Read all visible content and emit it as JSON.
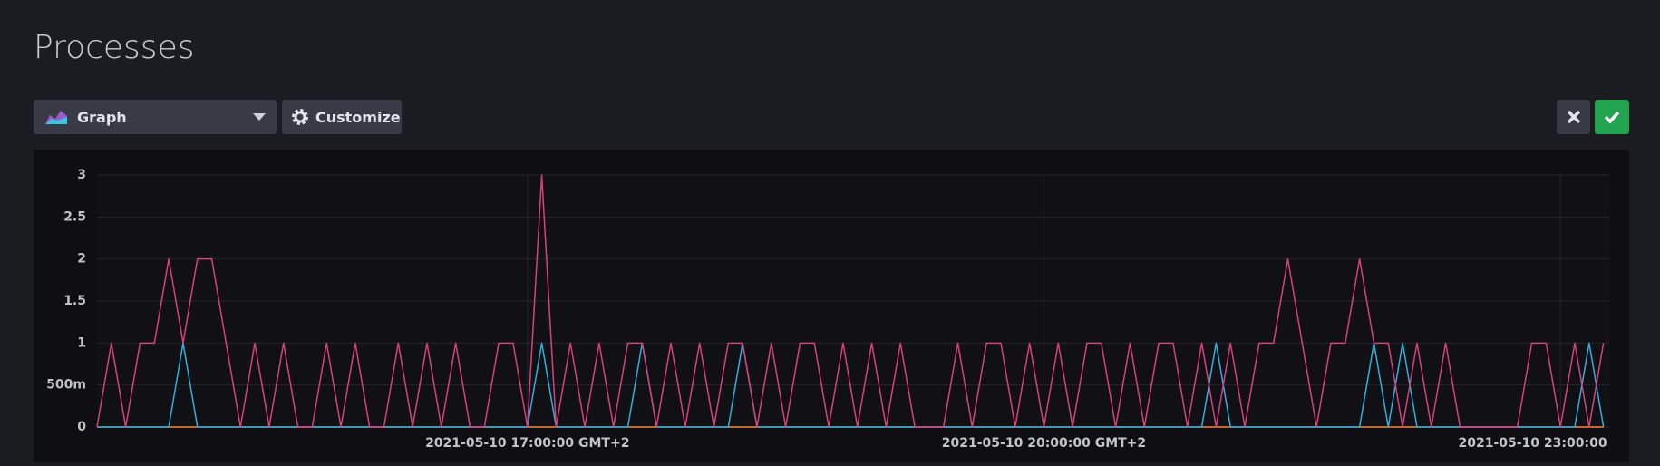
{
  "page": {
    "title": "Processes",
    "view_type": "Graph",
    "customize": "Customize"
  },
  "chart_data": {
    "type": "line",
    "x": [
      "2021-05-10T14:30:00",
      "2021-05-10T14:35:00",
      "2021-05-10T14:40:00",
      "2021-05-10T14:45:00",
      "2021-05-10T14:50:00",
      "2021-05-10T14:55:00",
      "2021-05-10T15:00:00",
      "2021-05-10T15:05:00",
      "2021-05-10T15:10:00",
      "2021-05-10T15:15:00",
      "2021-05-10T15:20:00",
      "2021-05-10T15:25:00",
      "2021-05-10T15:30:00",
      "2021-05-10T15:35:00",
      "2021-05-10T15:40:00",
      "2021-05-10T15:45:00",
      "2021-05-10T15:50:00",
      "2021-05-10T15:55:00",
      "2021-05-10T16:00:00",
      "2021-05-10T16:05:00",
      "2021-05-10T16:10:00",
      "2021-05-10T16:15:00",
      "2021-05-10T16:20:00",
      "2021-05-10T16:25:00",
      "2021-05-10T16:30:00",
      "2021-05-10T16:35:00",
      "2021-05-10T16:40:00",
      "2021-05-10T16:45:00",
      "2021-05-10T16:50:00",
      "2021-05-10T16:55:00",
      "2021-05-10T17:00:00",
      "2021-05-10T17:05:00",
      "2021-05-10T17:10:00",
      "2021-05-10T17:15:00",
      "2021-05-10T17:20:00",
      "2021-05-10T17:25:00",
      "2021-05-10T17:30:00",
      "2021-05-10T17:35:00",
      "2021-05-10T17:40:00",
      "2021-05-10T17:45:00",
      "2021-05-10T17:50:00",
      "2021-05-10T17:55:00",
      "2021-05-10T18:00:00",
      "2021-05-10T18:05:00",
      "2021-05-10T18:10:00",
      "2021-05-10T18:15:00",
      "2021-05-10T18:20:00",
      "2021-05-10T18:25:00",
      "2021-05-10T18:30:00",
      "2021-05-10T18:35:00",
      "2021-05-10T18:40:00",
      "2021-05-10T18:45:00",
      "2021-05-10T18:50:00",
      "2021-05-10T18:55:00",
      "2021-05-10T19:00:00",
      "2021-05-10T19:05:00",
      "2021-05-10T19:10:00",
      "2021-05-10T19:15:00",
      "2021-05-10T19:20:00",
      "2021-05-10T19:25:00",
      "2021-05-10T19:30:00",
      "2021-05-10T19:35:00",
      "2021-05-10T19:40:00",
      "2021-05-10T19:45:00",
      "2021-05-10T19:50:00",
      "2021-05-10T19:55:00",
      "2021-05-10T20:00:00",
      "2021-05-10T20:05:00",
      "2021-05-10T20:10:00",
      "2021-05-10T20:15:00",
      "2021-05-10T20:20:00",
      "2021-05-10T20:25:00",
      "2021-05-10T20:30:00",
      "2021-05-10T20:35:00",
      "2021-05-10T20:40:00",
      "2021-05-10T20:45:00",
      "2021-05-10T20:50:00",
      "2021-05-10T20:55:00",
      "2021-05-10T21:00:00",
      "2021-05-10T21:05:00",
      "2021-05-10T21:10:00",
      "2021-05-10T21:15:00",
      "2021-05-10T21:20:00",
      "2021-05-10T21:25:00",
      "2021-05-10T21:30:00",
      "2021-05-10T21:35:00",
      "2021-05-10T21:40:00",
      "2021-05-10T21:45:00",
      "2021-05-10T21:50:00",
      "2021-05-10T21:55:00",
      "2021-05-10T22:00:00",
      "2021-05-10T22:05:00",
      "2021-05-10T22:10:00",
      "2021-05-10T22:15:00",
      "2021-05-10T22:20:00",
      "2021-05-10T22:25:00",
      "2021-05-10T22:30:00",
      "2021-05-10T22:35:00",
      "2021-05-10T22:40:00",
      "2021-05-10T22:45:00",
      "2021-05-10T22:50:00",
      "2021-05-10T22:55:00",
      "2021-05-10T23:00:00",
      "2021-05-10T23:05:00",
      "2021-05-10T23:10:00",
      "2021-05-10T23:15:00"
    ],
    "series": [
      {
        "color": "#d6427e",
        "values": [
          0,
          1,
          0,
          1,
          1,
          2,
          1,
          2,
          2,
          1,
          0,
          1,
          0,
          1,
          0,
          0,
          1,
          0,
          1,
          0,
          0,
          1,
          0,
          1,
          0,
          1,
          0,
          0,
          1,
          1,
          0,
          3,
          0,
          1,
          0,
          1,
          0,
          1,
          1,
          0,
          1,
          0,
          1,
          0,
          1,
          1,
          0,
          1,
          0,
          1,
          1,
          0,
          1,
          0,
          1,
          0,
          1,
          0,
          0,
          0,
          1,
          0,
          1,
          1,
          0,
          1,
          0,
          1,
          0,
          1,
          1,
          0,
          1,
          0,
          1,
          1,
          0,
          1,
          0,
          1,
          0,
          1,
          1,
          2,
          1,
          0,
          1,
          1,
          2,
          1,
          1,
          0,
          1,
          0,
          1,
          0,
          0,
          0,
          0,
          0,
          1,
          1,
          0,
          1,
          0,
          1
        ]
      },
      {
        "color": "#31b0de",
        "values": [
          0,
          0,
          0,
          0,
          0,
          0,
          1,
          0,
          0,
          0,
          0,
          0,
          0,
          0,
          0,
          0,
          0,
          0,
          0,
          0,
          0,
          0,
          0,
          0,
          0,
          0,
          0,
          0,
          0,
          0,
          0,
          1,
          0,
          0,
          0,
          0,
          0,
          0,
          1,
          0,
          0,
          0,
          0,
          0,
          0,
          1,
          0,
          0,
          0,
          0,
          0,
          0,
          0,
          0,
          0,
          0,
          0,
          0,
          0,
          0,
          0,
          0,
          0,
          0,
          0,
          0,
          0,
          0,
          0,
          0,
          0,
          0,
          0,
          0,
          0,
          0,
          0,
          0,
          1,
          0,
          0,
          0,
          0,
          0,
          0,
          0,
          0,
          0,
          0,
          1,
          0,
          1,
          0,
          0,
          0,
          0,
          0,
          0,
          0,
          0,
          0,
          0,
          0,
          0,
          1,
          0
        ]
      },
      {
        "color": "#f58a3c",
        "values": [
          0,
          0,
          0,
          0,
          0,
          0,
          0,
          0,
          0,
          0,
          0,
          0,
          0,
          0,
          0,
          0,
          0,
          0,
          0,
          0,
          0,
          0,
          0,
          0,
          0,
          0,
          0,
          0,
          0,
          0,
          0,
          0,
          0,
          0,
          0,
          0,
          0,
          0,
          0,
          0,
          0,
          0,
          0,
          0,
          0,
          0,
          0,
          0,
          0,
          0,
          0,
          0,
          0,
          0,
          0,
          0,
          0,
          0,
          0,
          0,
          0,
          0,
          0,
          0,
          0,
          0,
          0,
          0,
          0,
          0,
          0,
          0,
          0,
          0,
          0,
          0,
          0,
          0,
          0,
          0,
          0,
          0,
          0,
          0,
          0,
          0,
          0,
          0,
          0,
          0,
          0,
          0,
          0,
          0,
          0,
          0,
          0,
          0,
          0,
          0,
          0,
          0,
          0,
          0,
          0,
          0
        ]
      }
    ],
    "xlim": [
      "2021-05-10T14:30:00",
      "2021-05-10T23:17:00"
    ],
    "xticks": [
      {
        "value": "2021-05-10T17:00:00",
        "label": "2021-05-10 17:00:00 GMT+2"
      },
      {
        "value": "2021-05-10T20:00:00",
        "label": "2021-05-10 20:00:00 GMT+2"
      },
      {
        "value": "2021-05-10T23:00:00",
        "label": "2021-05-10 23:00:00 GMT+2"
      }
    ],
    "ylim": [
      0,
      3
    ],
    "yticks": [
      0,
      {
        "value": 0.5,
        "label": "500m"
      },
      1,
      1.5,
      2,
      2.5,
      3
    ],
    "grid": true
  }
}
